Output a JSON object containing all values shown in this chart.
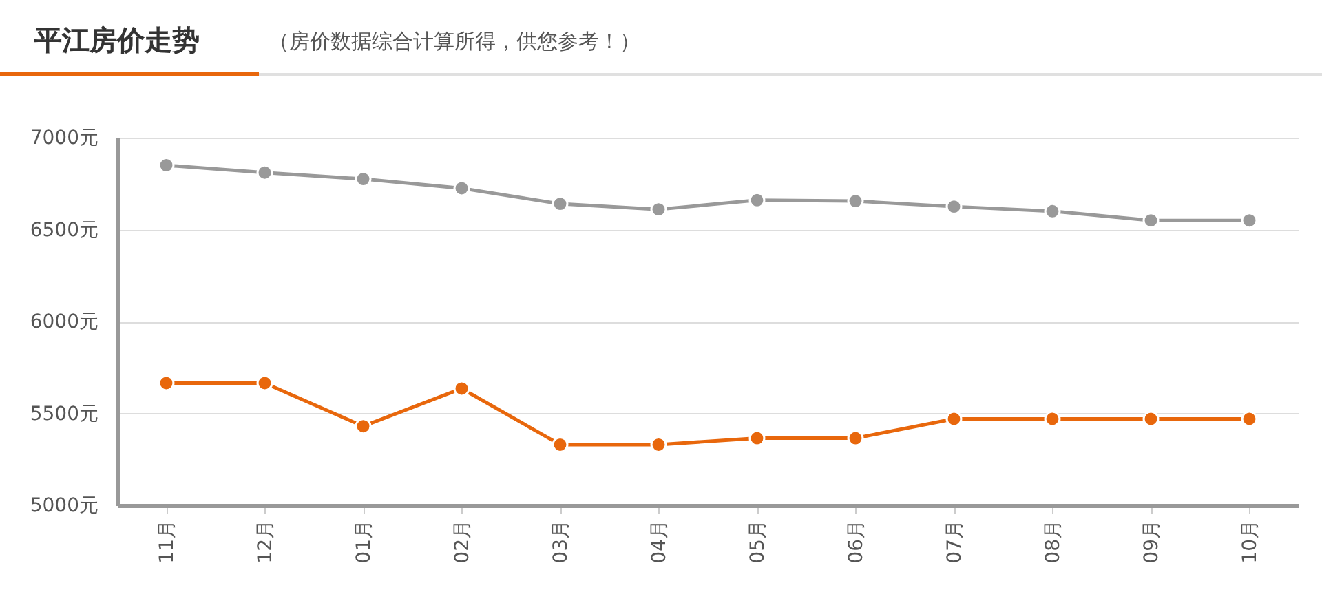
{
  "chart_data": {
    "type": "line",
    "title": "平江房价走势",
    "subtitle": "（房价数据综合计算所得，供您参考！）",
    "categories": [
      "11月",
      "12月",
      "01月",
      "02月",
      "03月",
      "04月",
      "05月",
      "06月",
      "07月",
      "08月",
      "09月",
      "10月"
    ],
    "series": [
      {
        "color": "#999999",
        "values": [
          6850,
          6810,
          6775,
          6725,
          6640,
          6610,
          6660,
          6655,
          6625,
          6600,
          6550,
          6550
        ]
      },
      {
        "color": "#e8670c",
        "values": [
          5665,
          5665,
          5430,
          5635,
          5330,
          5330,
          5365,
          5365,
          5470,
          5470,
          5470,
          5470
        ]
      }
    ],
    "ylim": [
      5000,
      7000
    ],
    "yticks": [
      {
        "value": 5000,
        "label": "5000元"
      },
      {
        "value": 5500,
        "label": "5500元"
      },
      {
        "value": 6000,
        "label": "6000元"
      },
      {
        "value": 6500,
        "label": "6500元"
      },
      {
        "value": 7000,
        "label": "7000元"
      }
    ],
    "grid": "y",
    "marker": "circle"
  }
}
